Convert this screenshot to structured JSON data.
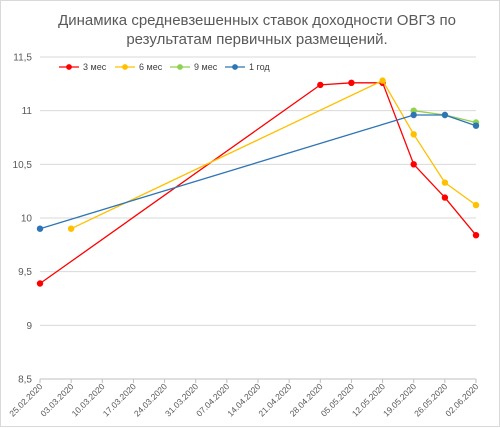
{
  "chart_data": {
    "type": "line",
    "title_lines": [
      "Динамика средневзешенных ставок доходности ОВГЗ по",
      "результатам первичных размещений."
    ],
    "xlabel": "",
    "ylabel": "",
    "ylim": [
      8.5,
      11.5
    ],
    "y_ticks": [
      8.5,
      9,
      9.5,
      10,
      10.5,
      11,
      11.5
    ],
    "y_tick_labels": [
      "8,5",
      "9",
      "9,5",
      "10",
      "10,5",
      "11",
      "11,5"
    ],
    "x_ticks": [
      "25.02.2020",
      "03.03.2020",
      "10.03.2020",
      "17.03.2020",
      "24.03.2020",
      "31.03.2020",
      "07.04.2020",
      "14.04.2020",
      "21.04.2020",
      "28.04.2020",
      "05.05.2020",
      "12.05.2020",
      "19.05.2020",
      "26.05.2020",
      "02.06.2020"
    ],
    "grid": "horizontal",
    "legend_position": "top",
    "series": [
      {
        "name": "3 мес",
        "color": "#ff0000",
        "points": [
          [
            "25.02.2020",
            9.39
          ],
          [
            "28.04.2020",
            11.24
          ],
          [
            "05.05.2020",
            11.26
          ],
          [
            "12.05.2020",
            11.26
          ],
          [
            "19.05.2020",
            10.5
          ],
          [
            "26.05.2020",
            10.19
          ],
          [
            "02.06.2020",
            9.84
          ]
        ]
      },
      {
        "name": "6 мес",
        "color": "#ffc000",
        "points": [
          [
            "03.03.2020",
            9.9
          ],
          [
            "12.05.2020",
            11.28
          ],
          [
            "19.05.2020",
            10.78
          ],
          [
            "26.05.2020",
            10.33
          ],
          [
            "02.06.2020",
            10.12
          ]
        ]
      },
      {
        "name": "9 мес",
        "color": "#92d050",
        "points": [
          [
            "19.05.2020",
            11.0
          ],
          [
            "26.05.2020",
            10.96
          ],
          [
            "02.06.2020",
            10.89
          ]
        ]
      },
      {
        "name": "1 год",
        "color": "#2e75b6",
        "points": [
          [
            "25.02.2020",
            9.9
          ],
          [
            "19.05.2020",
            10.96
          ],
          [
            "26.05.2020",
            10.96
          ],
          [
            "02.06.2020",
            10.86
          ]
        ]
      }
    ]
  }
}
